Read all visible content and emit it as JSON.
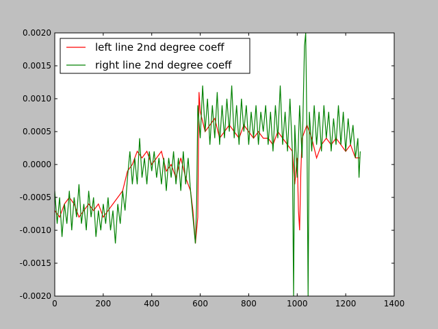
{
  "chart_data": {
    "type": "line",
    "title": "",
    "xlabel": "",
    "ylabel": "",
    "xlim": [
      0,
      1400
    ],
    "ylim": [
      -0.002,
      0.002
    ],
    "xticks": [
      0,
      200,
      400,
      600,
      800,
      1000,
      1200,
      1400
    ],
    "xtick_labels": [
      "0",
      "200",
      "400",
      "600",
      "800",
      "1000",
      "1200",
      "1400"
    ],
    "yticks": [
      -0.002,
      -0.0015,
      -0.001,
      -0.0005,
      0.0,
      0.0005,
      0.001,
      0.0015,
      0.002
    ],
    "ytick_labels": [
      "-0.0020",
      "-0.0015",
      "-0.0010",
      "-0.0005",
      "0.0000",
      "0.0005",
      "0.0010",
      "0.0015",
      "0.0020"
    ],
    "grid": false,
    "legend_position": "top-left",
    "series": [
      {
        "name": "left line 2nd degree coeff",
        "color": "#ff0000",
        "points": [
          [
            0,
            -0.0007
          ],
          [
            20,
            -0.0008
          ],
          [
            40,
            -0.0006
          ],
          [
            60,
            -0.0005
          ],
          [
            80,
            -0.0006
          ],
          [
            100,
            -0.0008
          ],
          [
            120,
            -0.0007
          ],
          [
            140,
            -0.0006
          ],
          [
            160,
            -0.0007
          ],
          [
            180,
            -0.0006
          ],
          [
            200,
            -0.0008
          ],
          [
            220,
            -0.0007
          ],
          [
            240,
            -0.0006
          ],
          [
            260,
            -0.0005
          ],
          [
            280,
            -0.0004
          ],
          [
            300,
            -0.0001
          ],
          [
            320,
            0.0
          ],
          [
            340,
            0.0002
          ],
          [
            360,
            0.0001
          ],
          [
            380,
            0.0002
          ],
          [
            400,
            0.0
          ],
          [
            420,
            0.0001
          ],
          [
            440,
            0.0002
          ],
          [
            460,
            -0.0001
          ],
          [
            480,
            0.0
          ],
          [
            500,
            -0.0002
          ],
          [
            520,
            0.0001
          ],
          [
            540,
            -0.0002
          ],
          [
            560,
            -0.0004
          ],
          [
            570,
            -0.0007
          ],
          [
            580,
            -0.0012
          ],
          [
            590,
            -0.0008
          ],
          [
            595,
            0.0011
          ],
          [
            600,
            0.0008
          ],
          [
            620,
            0.0005
          ],
          [
            640,
            0.0006
          ],
          [
            660,
            0.0007
          ],
          [
            680,
            0.0004
          ],
          [
            700,
            0.0005
          ],
          [
            720,
            0.0006
          ],
          [
            740,
            0.0005
          ],
          [
            760,
            0.0004
          ],
          [
            780,
            0.0006
          ],
          [
            800,
            0.0005
          ],
          [
            820,
            0.0004
          ],
          [
            840,
            0.0005
          ],
          [
            860,
            0.0004
          ],
          [
            880,
            0.0004
          ],
          [
            900,
            0.0003
          ],
          [
            920,
            0.0005
          ],
          [
            940,
            0.0004
          ],
          [
            960,
            0.0003
          ],
          [
            980,
            0.0002
          ],
          [
            990,
            -0.0003
          ],
          [
            1000,
            0.0001
          ],
          [
            1005,
            -0.0007
          ],
          [
            1010,
            -0.001
          ],
          [
            1015,
            -0.0001
          ],
          [
            1020,
            0.0004
          ],
          [
            1040,
            0.0006
          ],
          [
            1060,
            0.0004
          ],
          [
            1080,
            0.0001
          ],
          [
            1100,
            0.0003
          ],
          [
            1120,
            0.0004
          ],
          [
            1140,
            0.0003
          ],
          [
            1160,
            0.0004
          ],
          [
            1180,
            0.0003
          ],
          [
            1200,
            0.0002
          ],
          [
            1220,
            0.0003
          ],
          [
            1240,
            0.0001
          ],
          [
            1260,
            0.0001
          ]
        ]
      },
      {
        "name": "right line 2nd degree coeff",
        "color": "#008000",
        "points": [
          [
            0,
            -0.0004
          ],
          [
            10,
            -0.0009
          ],
          [
            20,
            -0.0005
          ],
          [
            30,
            -0.0011
          ],
          [
            40,
            -0.0006
          ],
          [
            50,
            -0.0009
          ],
          [
            60,
            -0.0004
          ],
          [
            70,
            -0.001
          ],
          [
            80,
            -0.0005
          ],
          [
            90,
            -0.0008
          ],
          [
            100,
            -0.0003
          ],
          [
            110,
            -0.0009
          ],
          [
            120,
            -0.0006
          ],
          [
            130,
            -0.001
          ],
          [
            140,
            -0.0004
          ],
          [
            150,
            -0.0008
          ],
          [
            160,
            -0.0005
          ],
          [
            170,
            -0.0011
          ],
          [
            180,
            -0.0007
          ],
          [
            190,
            -0.001
          ],
          [
            200,
            -0.0006
          ],
          [
            210,
            -0.0009
          ],
          [
            220,
            -0.0005
          ],
          [
            230,
            -0.001
          ],
          [
            240,
            -0.0007
          ],
          [
            250,
            -0.0012
          ],
          [
            260,
            -0.0006
          ],
          [
            270,
            -0.0009
          ],
          [
            280,
            -0.0004
          ],
          [
            290,
            -0.0007
          ],
          [
            300,
            -0.0002
          ],
          [
            310,
            0.0002
          ],
          [
            320,
            -0.0003
          ],
          [
            330,
            0.0001
          ],
          [
            340,
            -0.0003
          ],
          [
            350,
            0.0004
          ],
          [
            360,
            -0.0002
          ],
          [
            370,
            0.0001
          ],
          [
            380,
            -0.0003
          ],
          [
            390,
            0.0002
          ],
          [
            400,
            -0.0001
          ],
          [
            410,
            0.0002
          ],
          [
            420,
            -0.0002
          ],
          [
            430,
            0.0001
          ],
          [
            440,
            -0.0003
          ],
          [
            450,
            0.0001
          ],
          [
            460,
            -0.0004
          ],
          [
            470,
            0.0001
          ],
          [
            480,
            -0.0002
          ],
          [
            490,
            0.0002
          ],
          [
            500,
            -0.0003
          ],
          [
            510,
            0.0001
          ],
          [
            520,
            -0.0004
          ],
          [
            530,
            0.0002
          ],
          [
            540,
            -0.0003
          ],
          [
            550,
            0.0001
          ],
          [
            560,
            -0.0004
          ],
          [
            570,
            -0.0008
          ],
          [
            580,
            -0.0012
          ],
          [
            585,
            -0.0006
          ],
          [
            590,
            0.0009
          ],
          [
            600,
            0.0004
          ],
          [
            610,
            0.0012
          ],
          [
            620,
            0.0005
          ],
          [
            630,
            0.001
          ],
          [
            640,
            0.0003
          ],
          [
            650,
            0.0009
          ],
          [
            660,
            0.0004
          ],
          [
            670,
            0.0011
          ],
          [
            680,
            0.0003
          ],
          [
            690,
            0.0009
          ],
          [
            700,
            0.0004
          ],
          [
            710,
            0.001
          ],
          [
            720,
            0.0005
          ],
          [
            730,
            0.0012
          ],
          [
            740,
            0.0004
          ],
          [
            750,
            0.0009
          ],
          [
            760,
            0.0003
          ],
          [
            770,
            0.001
          ],
          [
            780,
            0.0005
          ],
          [
            790,
            0.0009
          ],
          [
            800,
            0.0003
          ],
          [
            810,
            0.0008
          ],
          [
            820,
            0.0004
          ],
          [
            830,
            0.0009
          ],
          [
            840,
            0.0003
          ],
          [
            850,
            0.0008
          ],
          [
            860,
            0.0005
          ],
          [
            870,
            0.0009
          ],
          [
            880,
            0.0003
          ],
          [
            890,
            0.0008
          ],
          [
            900,
            0.0002
          ],
          [
            910,
            0.0009
          ],
          [
            920,
            0.0004
          ],
          [
            930,
            0.0012
          ],
          [
            940,
            0.0003
          ],
          [
            950,
            0.0008
          ],
          [
            960,
            0.0002
          ],
          [
            970,
            0.001
          ],
          [
            980,
            0.0002
          ],
          [
            985,
            -0.002
          ],
          [
            990,
            0.0006
          ],
          [
            1000,
            -0.0002
          ],
          [
            1010,
            0.0009
          ],
          [
            1020,
            0.0001
          ],
          [
            1030,
            0.0018
          ],
          [
            1035,
            0.002
          ],
          [
            1040,
            0.0005
          ],
          [
            1045,
            -0.002
          ],
          [
            1050,
            0.0008
          ],
          [
            1060,
            0.0002
          ],
          [
            1070,
            0.0009
          ],
          [
            1080,
            0.0003
          ],
          [
            1090,
            0.0008
          ],
          [
            1100,
            0.0002
          ],
          [
            1110,
            0.0009
          ],
          [
            1120,
            0.0004
          ],
          [
            1130,
            0.0008
          ],
          [
            1140,
            0.0002
          ],
          [
            1150,
            0.0007
          ],
          [
            1160,
            0.0003
          ],
          [
            1170,
            0.0009
          ],
          [
            1180,
            0.0003
          ],
          [
            1190,
            0.0008
          ],
          [
            1200,
            0.0002
          ],
          [
            1210,
            0.0007
          ],
          [
            1220,
            0.0003
          ],
          [
            1230,
            0.0006
          ],
          [
            1240,
            0.0001
          ],
          [
            1250,
            0.0004
          ],
          [
            1255,
            -0.0002
          ],
          [
            1260,
            0.0002
          ]
        ]
      }
    ]
  }
}
